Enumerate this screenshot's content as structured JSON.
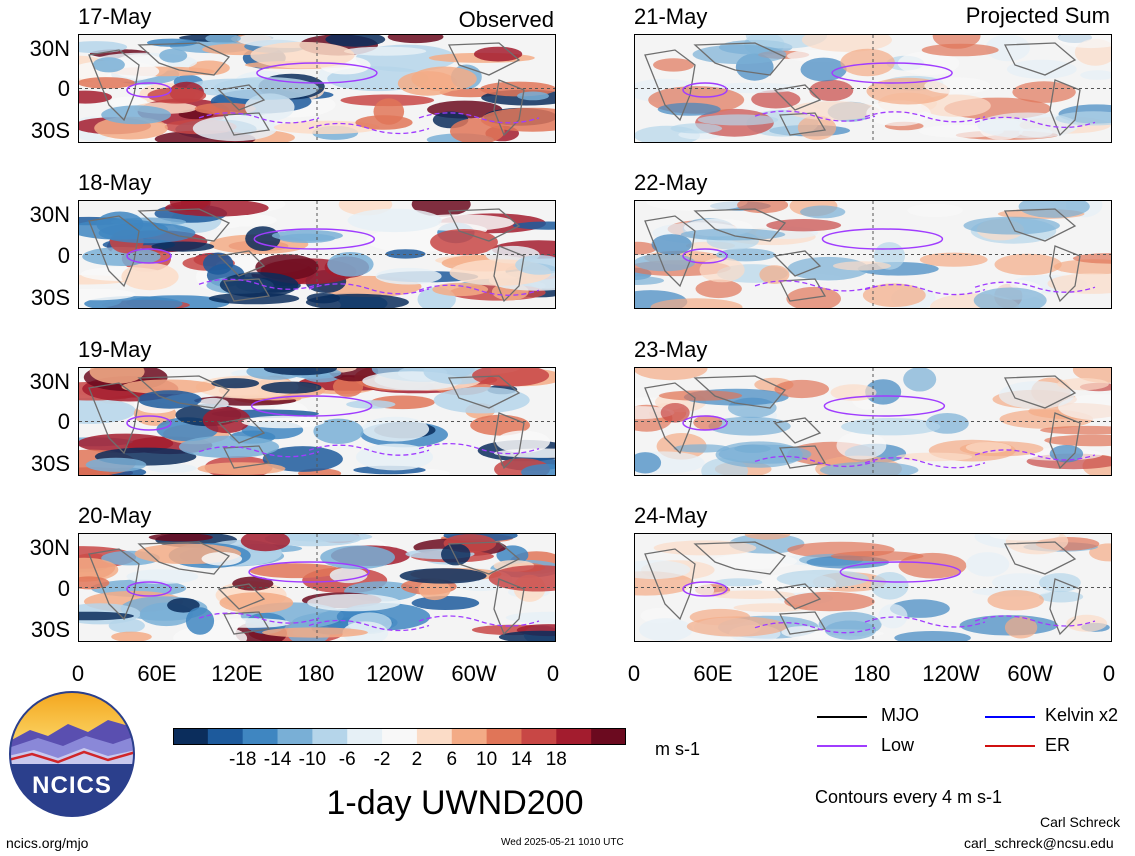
{
  "headers": {
    "observed": "Observed",
    "projected": "Projected Sum"
  },
  "observed_dates": [
    "17-May",
    "18-May",
    "19-May",
    "20-May"
  ],
  "projected_dates": [
    "21-May",
    "22-May",
    "23-May",
    "24-May"
  ],
  "lat_labels": [
    "30N",
    "0",
    "30S"
  ],
  "lon_labels": [
    "0",
    "60E",
    "120E",
    "180",
    "120W",
    "60W",
    "0"
  ],
  "colorbar": {
    "colors": [
      "#0b2d5c",
      "#1d5a9c",
      "#3f86c1",
      "#79afd6",
      "#b5d5ea",
      "#e6f0f6",
      "#f8f8f8",
      "#fbdcc7",
      "#f3ab86",
      "#e07558",
      "#c84745",
      "#a31c2e",
      "#6b0a1f"
    ],
    "labels": [
      "-18",
      "-14",
      "-10",
      "-6",
      "-2",
      "2",
      "6",
      "10",
      "14",
      "18"
    ],
    "units": "m s-1"
  },
  "legend": {
    "items": [
      {
        "label": "MJO",
        "color": "#000000"
      },
      {
        "label": "Kelvin x2",
        "color": "#0000ff"
      },
      {
        "label": "Low",
        "color": "#a03cff"
      },
      {
        "label": "ER",
        "color": "#d01010"
      }
    ],
    "contours_note": "Contours every 4 m s-1"
  },
  "title": "1-day UWND200",
  "logo_text": "NCICS",
  "footer": {
    "left": "ncics.org/mjo",
    "center": "Wed 2025-05-21 1010 UTC",
    "author": "Carl Schreck",
    "email": "carl_schreck@ncsu.edu"
  }
}
